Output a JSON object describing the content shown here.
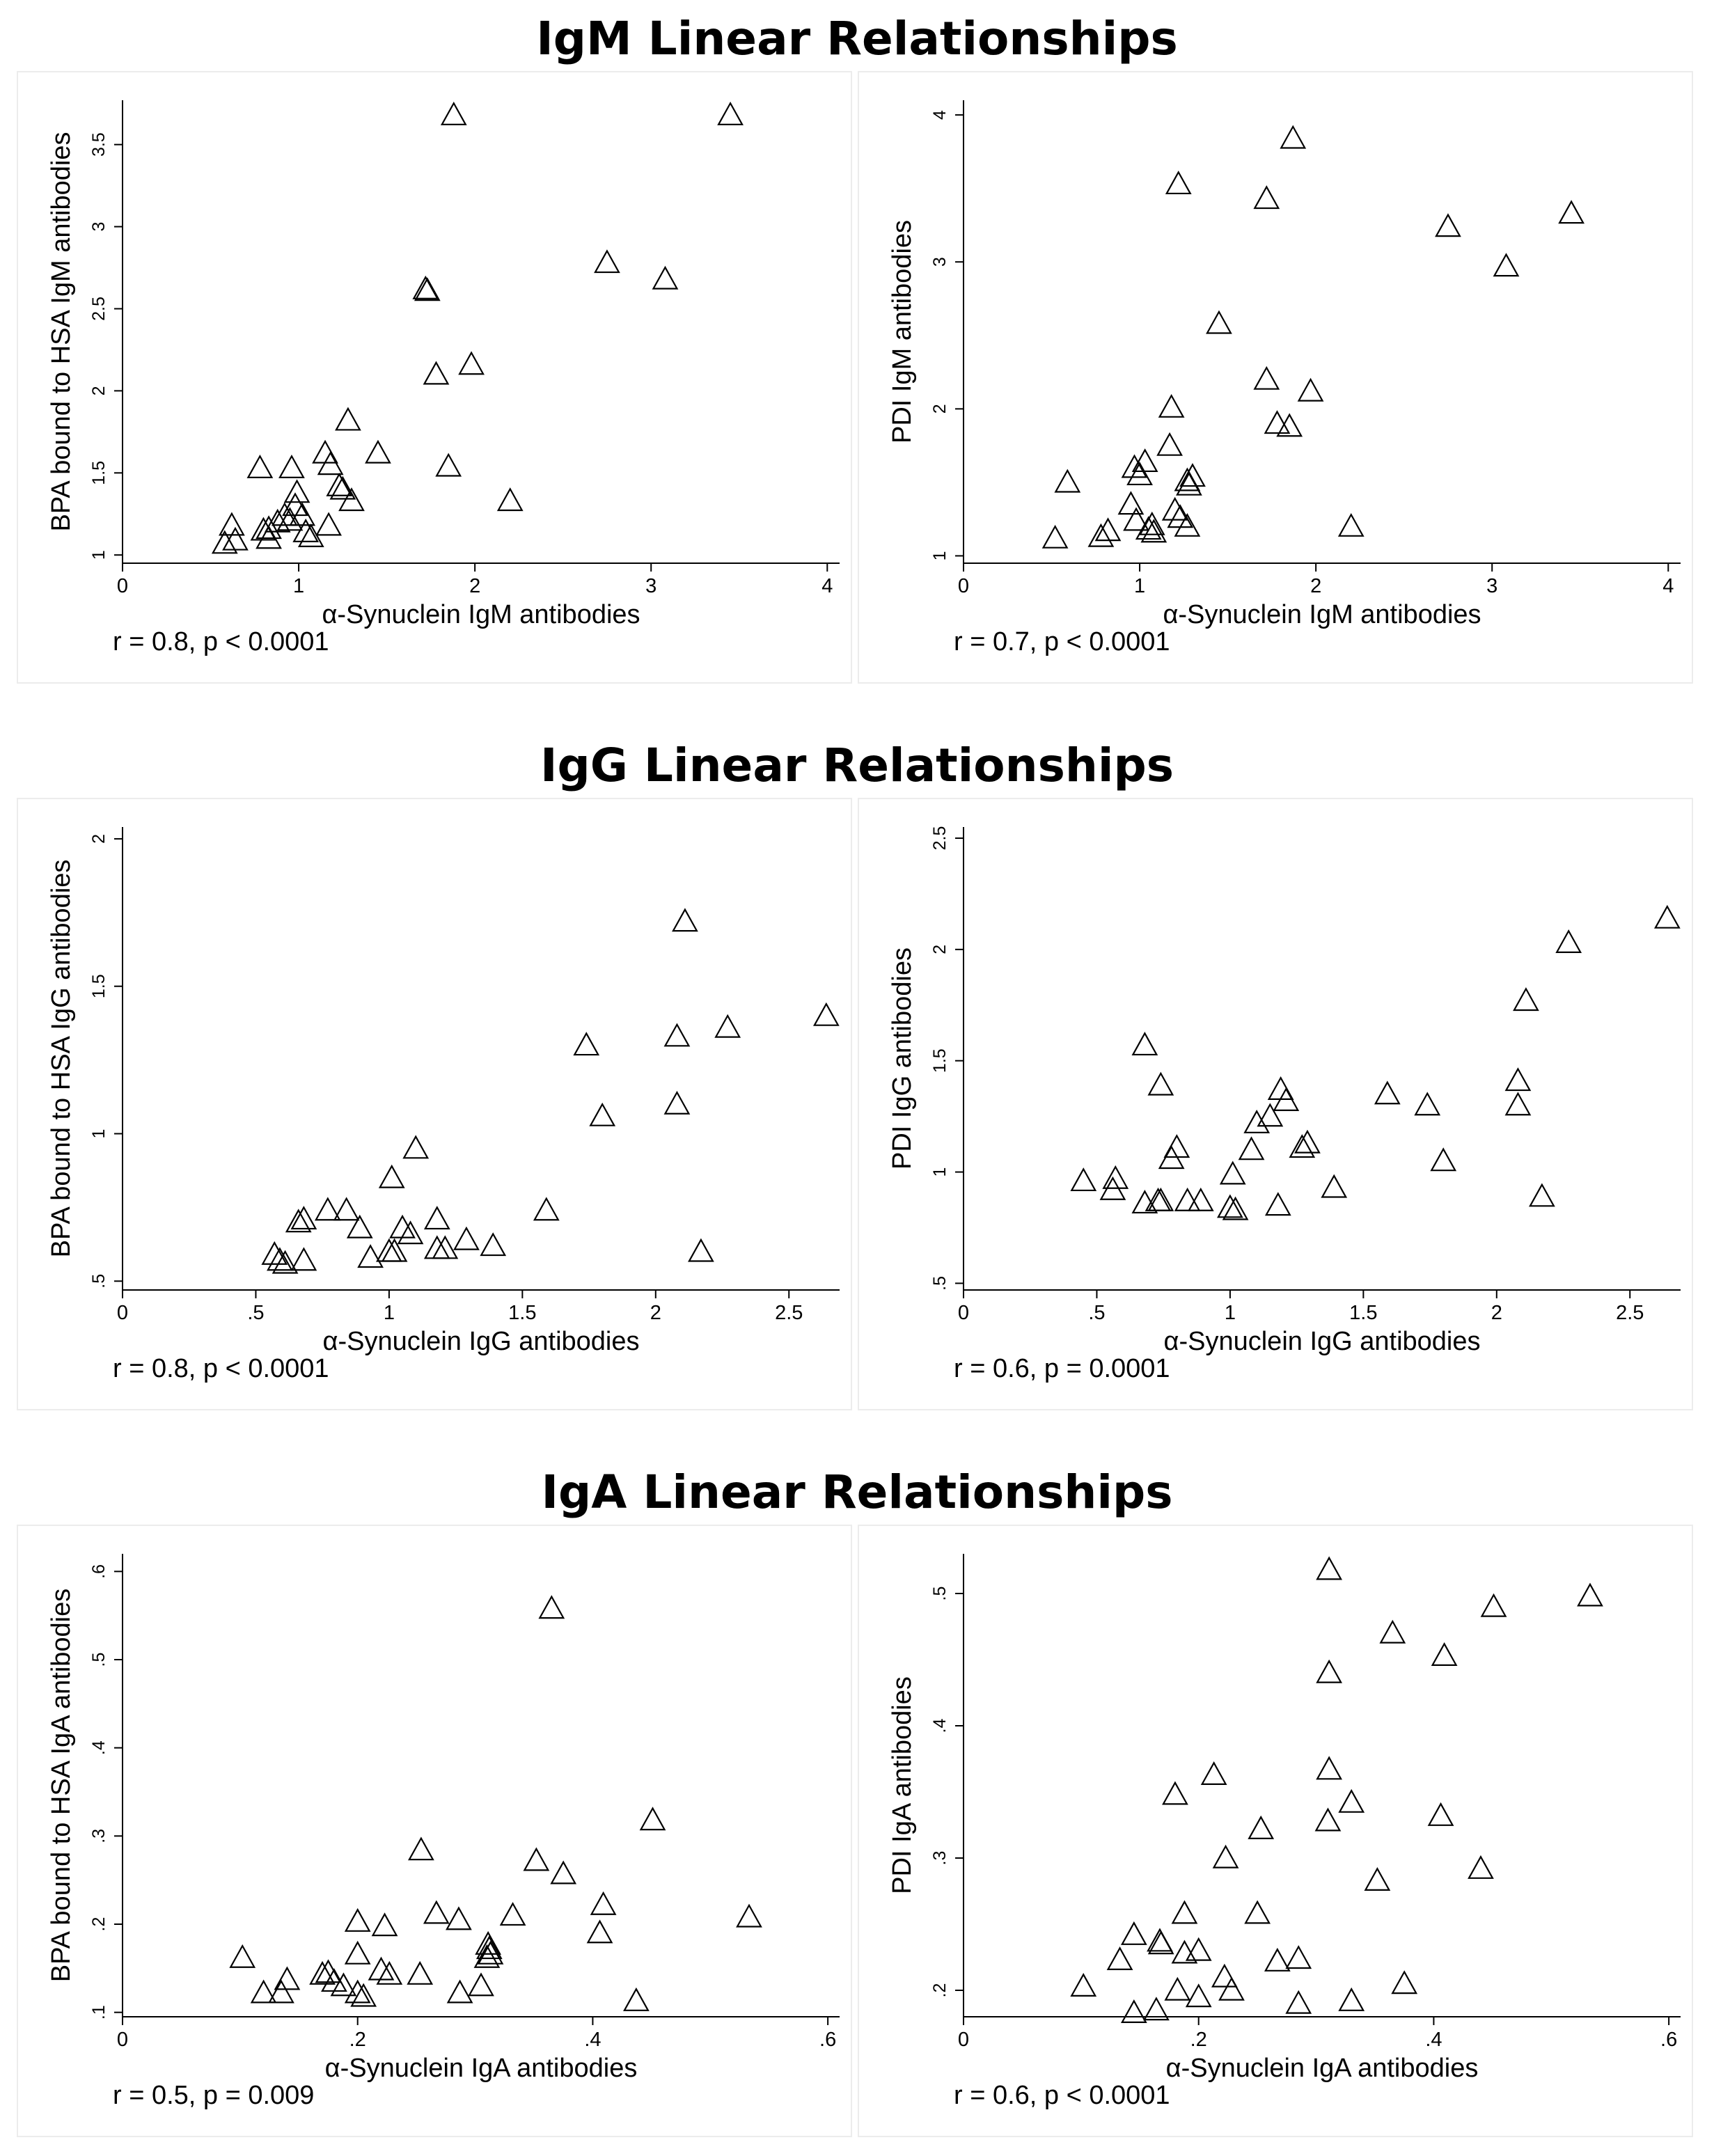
{
  "sections": [
    {
      "title": "IgM Linear Relationships"
    },
    {
      "title": "IgG Linear Relationships"
    },
    {
      "title": "IgA Linear Relationships"
    }
  ],
  "chart_data": [
    {
      "type": "scatter",
      "section": 0,
      "position": "left",
      "marker": "triangle",
      "title": "",
      "xlabel": "α-Synuclein IgM antibodies",
      "ylabel": "BPA bound to HSA IgM antibodies",
      "stat": "r = 0.8, p < 0.0001",
      "xlim": [
        0,
        4.07
      ],
      "ylim": [
        0.95,
        3.77
      ],
      "xticks": [
        0,
        1,
        2,
        3,
        4
      ],
      "xtick_labels": [
        "0",
        "1",
        "2",
        "3",
        "4"
      ],
      "yticks": [
        1,
        1.5,
        2,
        2.5,
        3,
        3.5
      ],
      "ytick_labels": [
        "1",
        "1.5",
        "2",
        "2.5",
        "3",
        "3.5"
      ],
      "points": [
        [
          1.88,
          3.68
        ],
        [
          3.45,
          3.68
        ],
        [
          2.75,
          2.78
        ],
        [
          3.08,
          2.68
        ],
        [
          1.72,
          2.62
        ],
        [
          1.73,
          2.61
        ],
        [
          1.98,
          2.16
        ],
        [
          1.78,
          2.1
        ],
        [
          1.28,
          1.82
        ],
        [
          1.45,
          1.62
        ],
        [
          1.15,
          1.62
        ],
        [
          1.85,
          1.54
        ],
        [
          0.78,
          1.53
        ],
        [
          0.96,
          1.53
        ],
        [
          1.18,
          1.55
        ],
        [
          1.23,
          1.42
        ],
        [
          1.25,
          1.4
        ],
        [
          0.99,
          1.38
        ],
        [
          1.3,
          1.33
        ],
        [
          2.2,
          1.33
        ],
        [
          0.98,
          1.3
        ],
        [
          0.92,
          1.24
        ],
        [
          1.02,
          1.24
        ],
        [
          0.95,
          1.21
        ],
        [
          0.88,
          1.2
        ],
        [
          0.62,
          1.18
        ],
        [
          1.17,
          1.18
        ],
        [
          0.83,
          1.16
        ],
        [
          0.8,
          1.15
        ],
        [
          1.04,
          1.14
        ],
        [
          1.07,
          1.11
        ],
        [
          0.83,
          1.1
        ],
        [
          0.64,
          1.09
        ],
        [
          0.58,
          1.07
        ]
      ]
    },
    {
      "type": "scatter",
      "section": 0,
      "position": "right",
      "marker": "triangle",
      "title": "",
      "xlabel": "α-Synuclein IgM antibodies",
      "ylabel": "PDI IgM antibodies",
      "stat": "r = 0.7, p < 0.0001",
      "xlim": [
        0,
        4.07
      ],
      "ylim": [
        0.95,
        4.1
      ],
      "xticks": [
        0,
        1,
        2,
        3,
        4
      ],
      "xtick_labels": [
        "0",
        "1",
        "2",
        "3",
        "4"
      ],
      "yticks": [
        1,
        2,
        3,
        4
      ],
      "ytick_labels": [
        "1",
        "2",
        "3",
        "4"
      ],
      "points": [
        [
          1.87,
          3.84
        ],
        [
          1.22,
          3.53
        ],
        [
          1.72,
          3.43
        ],
        [
          3.45,
          3.33
        ],
        [
          2.75,
          3.24
        ],
        [
          3.08,
          2.97
        ],
        [
          1.45,
          2.58
        ],
        [
          1.72,
          2.2
        ],
        [
          1.97,
          2.12
        ],
        [
          1.18,
          2.01
        ],
        [
          1.78,
          1.9
        ],
        [
          1.85,
          1.88
        ],
        [
          1.17,
          1.75
        ],
        [
          1.03,
          1.64
        ],
        [
          0.97,
          1.6
        ],
        [
          1.0,
          1.55
        ],
        [
          1.3,
          1.54
        ],
        [
          1.27,
          1.51
        ],
        [
          0.59,
          1.5
        ],
        [
          1.28,
          1.48
        ],
        [
          0.95,
          1.35
        ],
        [
          1.2,
          1.31
        ],
        [
          1.23,
          1.26
        ],
        [
          0.98,
          1.24
        ],
        [
          1.07,
          1.21
        ],
        [
          2.2,
          1.2
        ],
        [
          1.27,
          1.2
        ],
        [
          1.05,
          1.18
        ],
        [
          0.82,
          1.17
        ],
        [
          1.08,
          1.16
        ],
        [
          0.78,
          1.13
        ],
        [
          0.52,
          1.12
        ]
      ]
    },
    {
      "type": "scatter",
      "section": 1,
      "position": "left",
      "marker": "triangle",
      "title": "",
      "xlabel": "α-Synuclein IgG antibodies",
      "ylabel": "BPA bound to HSA IgG antibodies",
      "stat": "r = 0.8, p < 0.0001",
      "xlim": [
        0,
        2.69
      ],
      "ylim": [
        0.47,
        2.04
      ],
      "xticks": [
        0,
        0.5,
        1,
        1.5,
        2,
        2.5
      ],
      "xtick_labels": [
        "0",
        ".5",
        "1",
        "1.5",
        "2",
        "2.5"
      ],
      "yticks": [
        0.5,
        1,
        1.5,
        2
      ],
      "ytick_labels": [
        ".5",
        "1",
        "1.5",
        "2"
      ],
      "points": [
        [
          2.11,
          1.72
        ],
        [
          2.64,
          1.4
        ],
        [
          2.27,
          1.36
        ],
        [
          2.08,
          1.33
        ],
        [
          1.74,
          1.3
        ],
        [
          2.08,
          1.1
        ],
        [
          1.8,
          1.06
        ],
        [
          1.1,
          0.95
        ],
        [
          1.01,
          0.85
        ],
        [
          0.77,
          0.74
        ],
        [
          0.84,
          0.74
        ],
        [
          1.59,
          0.74
        ],
        [
          0.68,
          0.71
        ],
        [
          0.66,
          0.7
        ],
        [
          1.18,
          0.71
        ],
        [
          0.89,
          0.68
        ],
        [
          1.05,
          0.68
        ],
        [
          1.08,
          0.66
        ],
        [
          1.29,
          0.64
        ],
        [
          1.39,
          0.62
        ],
        [
          1.18,
          0.61
        ],
        [
          1.21,
          0.61
        ],
        [
          1.0,
          0.6
        ],
        [
          2.17,
          0.6
        ],
        [
          1.02,
          0.6
        ],
        [
          0.57,
          0.59
        ],
        [
          0.93,
          0.58
        ],
        [
          0.68,
          0.57
        ],
        [
          0.59,
          0.57
        ],
        [
          0.61,
          0.56
        ]
      ]
    },
    {
      "type": "scatter",
      "section": 1,
      "position": "right",
      "marker": "triangle",
      "title": "",
      "xlabel": "α-Synuclein IgG antibodies",
      "ylabel": "PDI IgG antibodies",
      "stat": "r = 0.6, p = 0.0001",
      "xlim": [
        0,
        2.69
      ],
      "ylim": [
        0.47,
        2.55
      ],
      "xticks": [
        0,
        0.5,
        1,
        1.5,
        2,
        2.5
      ],
      "xtick_labels": [
        "0",
        ".5",
        "1",
        "1.5",
        "2",
        "2.5"
      ],
      "yticks": [
        0.5,
        1,
        1.5,
        2,
        2.5
      ],
      "ytick_labels": [
        ".5",
        "1",
        "1.5",
        "2",
        "2.5"
      ],
      "points": [
        [
          2.64,
          2.14
        ],
        [
          2.27,
          2.03
        ],
        [
          2.11,
          1.77
        ],
        [
          0.68,
          1.57
        ],
        [
          2.08,
          1.41
        ],
        [
          0.74,
          1.39
        ],
        [
          1.19,
          1.37
        ],
        [
          1.59,
          1.35
        ],
        [
          1.21,
          1.32
        ],
        [
          1.74,
          1.3
        ],
        [
          2.08,
          1.3
        ],
        [
          1.1,
          1.22
        ],
        [
          1.15,
          1.25
        ],
        [
          1.29,
          1.13
        ],
        [
          1.27,
          1.11
        ],
        [
          0.8,
          1.11
        ],
        [
          1.08,
          1.1
        ],
        [
          0.78,
          1.06
        ],
        [
          1.8,
          1.05
        ],
        [
          1.01,
          0.99
        ],
        [
          0.45,
          0.96
        ],
        [
          0.57,
          0.97
        ],
        [
          1.39,
          0.93
        ],
        [
          0.56,
          0.92
        ],
        [
          2.17,
          0.89
        ],
        [
          0.73,
          0.87
        ],
        [
          0.74,
          0.87
        ],
        [
          0.84,
          0.87
        ],
        [
          0.89,
          0.87
        ],
        [
          0.68,
          0.86
        ],
        [
          1.18,
          0.85
        ],
        [
          1.0,
          0.84
        ],
        [
          1.02,
          0.83
        ]
      ]
    },
    {
      "type": "scatter",
      "section": 2,
      "position": "left",
      "marker": "triangle",
      "title": "",
      "xlabel": "α-Synuclein IgA antibodies",
      "ylabel": "BPA bound to HSA IgA antibodies",
      "stat": "r = 0.5, p = 0.009",
      "xlim": [
        0,
        0.61
      ],
      "ylim": [
        0.095,
        0.62
      ],
      "xticks": [
        0,
        0.2,
        0.4,
        0.6
      ],
      "xtick_labels": [
        "0",
        ".2",
        ".4",
        ".6"
      ],
      "yticks": [
        0.1,
        0.2,
        0.3,
        0.4,
        0.5,
        0.6
      ],
      "ytick_labels": [
        ".1",
        ".2",
        ".3",
        ".4",
        ".5",
        ".6"
      ],
      "points": [
        [
          0.365,
          0.558
        ],
        [
          0.451,
          0.318
        ],
        [
          0.254,
          0.284
        ],
        [
          0.352,
          0.272
        ],
        [
          0.375,
          0.257
        ],
        [
          0.409,
          0.222
        ],
        [
          0.533,
          0.208
        ],
        [
          0.332,
          0.21
        ],
        [
          0.267,
          0.212
        ],
        [
          0.2,
          0.203
        ],
        [
          0.223,
          0.198
        ],
        [
          0.286,
          0.205
        ],
        [
          0.406,
          0.19
        ],
        [
          0.311,
          0.177
        ],
        [
          0.312,
          0.172
        ],
        [
          0.313,
          0.166
        ],
        [
          0.31,
          0.162
        ],
        [
          0.102,
          0.162
        ],
        [
          0.2,
          0.166
        ],
        [
          0.22,
          0.148
        ],
        [
          0.227,
          0.143
        ],
        [
          0.253,
          0.143
        ],
        [
          0.17,
          0.143
        ],
        [
          0.175,
          0.145
        ],
        [
          0.14,
          0.137
        ],
        [
          0.18,
          0.135
        ],
        [
          0.305,
          0.13
        ],
        [
          0.188,
          0.13
        ],
        [
          0.12,
          0.122
        ],
        [
          0.135,
          0.122
        ],
        [
          0.2,
          0.122
        ],
        [
          0.205,
          0.118
        ],
        [
          0.287,
          0.122
        ],
        [
          0.437,
          0.113
        ]
      ]
    },
    {
      "type": "scatter",
      "section": 2,
      "position": "right",
      "marker": "triangle",
      "title": "",
      "xlabel": "α-Synuclein IgA antibodies",
      "ylabel": "PDI IgA antibodies",
      "stat": "r = 0.6, p < 0.0001",
      "xlim": [
        0,
        0.61
      ],
      "ylim": [
        0.18,
        0.53
      ],
      "xticks": [
        0,
        0.2,
        0.4,
        0.6
      ],
      "xtick_labels": [
        "0",
        ".2",
        ".4",
        ".6"
      ],
      "yticks": [
        0.2,
        0.3,
        0.4,
        0.5
      ],
      "ytick_labels": [
        ".2",
        ".3",
        ".4",
        ".5"
      ],
      "points": [
        [
          0.311,
          0.518
        ],
        [
          0.533,
          0.498
        ],
        [
          0.451,
          0.49
        ],
        [
          0.365,
          0.47
        ],
        [
          0.409,
          0.453
        ],
        [
          0.311,
          0.44
        ],
        [
          0.213,
          0.363
        ],
        [
          0.311,
          0.367
        ],
        [
          0.18,
          0.348
        ],
        [
          0.33,
          0.342
        ],
        [
          0.406,
          0.332
        ],
        [
          0.31,
          0.328
        ],
        [
          0.253,
          0.322
        ],
        [
          0.223,
          0.3
        ],
        [
          0.44,
          0.292
        ],
        [
          0.352,
          0.283
        ],
        [
          0.188,
          0.258
        ],
        [
          0.25,
          0.258
        ],
        [
          0.145,
          0.242
        ],
        [
          0.167,
          0.237
        ],
        [
          0.168,
          0.235
        ],
        [
          0.2,
          0.23
        ],
        [
          0.188,
          0.228
        ],
        [
          0.133,
          0.223
        ],
        [
          0.267,
          0.222
        ],
        [
          0.285,
          0.224
        ],
        [
          0.222,
          0.21
        ],
        [
          0.228,
          0.2
        ],
        [
          0.375,
          0.205
        ],
        [
          0.102,
          0.203
        ],
        [
          0.182,
          0.2
        ],
        [
          0.2,
          0.195
        ],
        [
          0.285,
          0.19
        ],
        [
          0.33,
          0.192
        ],
        [
          0.164,
          0.185
        ],
        [
          0.145,
          0.183
        ]
      ]
    }
  ]
}
